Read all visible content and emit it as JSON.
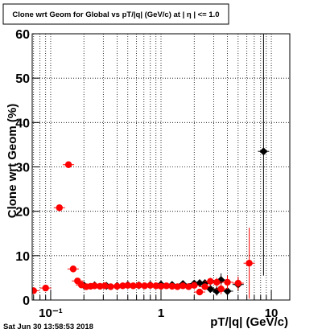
{
  "chart_data": {
    "type": "scatter",
    "title": "Clone wrt Geom for Global vs pT/|q| (GeV/c) at | η | <= 1.0",
    "x_label": "pT/|q| (GeV/c)",
    "y_label": "Clone wrt Geom (%)",
    "timestamp": "Sat Jun 30 13:58:53 2018",
    "xlog": true,
    "grid": true,
    "xlim": [
      0.068,
      14.7
    ],
    "ylim": [
      0,
      60
    ],
    "xticks": [
      {
        "value": 0.1,
        "label": "10⁻¹"
      },
      1,
      10
    ],
    "xminor": [
      0.07,
      0.08,
      0.09,
      0.2,
      0.3,
      0.4,
      0.5,
      0.6,
      0.7,
      0.8,
      0.9,
      2,
      3,
      4,
      5,
      6,
      7,
      8,
      9
    ],
    "yticks": [
      0,
      10,
      20,
      30,
      40,
      50,
      60
    ],
    "series": [
      {
        "color": "#000000",
        "marker": "diamond",
        "x": [
          0.2,
          0.25,
          0.32,
          0.4,
          0.5,
          0.63,
          0.8,
          1.0,
          1.26,
          1.58,
          2.0,
          2.24,
          2.5,
          2.8,
          3.2,
          3.5,
          4.0,
          5.0,
          8.5
        ],
        "values": [
          3.3,
          3.3,
          3.2,
          3.2,
          3.4,
          3.3,
          3.4,
          3.5,
          3.4,
          3.6,
          3.7,
          3.8,
          3.8,
          2.5,
          2.0,
          4.5,
          2.0,
          3.5,
          33.5
        ],
        "errors": [
          0.3,
          0.3,
          0.3,
          0.3,
          0.3,
          0.3,
          0.3,
          0.3,
          0.4,
          0.4,
          0.5,
          0.5,
          0.6,
          0.8,
          1.0,
          1.5,
          1.0,
          1.5,
          28
        ]
      },
      {
        "color": "#ff0000",
        "marker": "circle",
        "x": [
          0.07,
          0.09,
          0.12,
          0.145,
          0.16,
          0.175,
          0.19,
          0.21,
          0.23,
          0.25,
          0.28,
          0.31,
          0.35,
          0.4,
          0.45,
          0.5,
          0.56,
          0.63,
          0.71,
          0.8,
          0.9,
          1.0,
          1.12,
          1.26,
          1.41,
          1.58,
          1.78,
          2.0,
          2.24,
          2.5,
          2.8,
          3.2,
          3.5,
          4.0,
          5.0,
          6.3
        ],
        "values": [
          2.1,
          2.7,
          20.8,
          30.5,
          7.0,
          4.3,
          3.4,
          3.0,
          3.1,
          3.2,
          3.1,
          3.2,
          3.0,
          3.1,
          3.2,
          3.3,
          3.2,
          3.3,
          3.2,
          3.3,
          3.2,
          3.1,
          3.2,
          3.1,
          3.0,
          3.2,
          3.0,
          3.3,
          1.8,
          3.0,
          4.2,
          4.0,
          2.5,
          4.0,
          3.8,
          8.3
        ],
        "errors": [
          0.4,
          0.4,
          0.6,
          0.7,
          0.5,
          0.4,
          0.3,
          0.3,
          0.3,
          0.3,
          0.3,
          0.3,
          0.3,
          0.3,
          0.3,
          0.3,
          0.3,
          0.3,
          0.3,
          0.3,
          0.3,
          0.3,
          0.3,
          0.3,
          0.3,
          0.3,
          0.4,
          0.4,
          0.5,
          0.6,
          0.8,
          1.0,
          1.2,
          1.5,
          1.5,
          8.0
        ]
      }
    ]
  }
}
